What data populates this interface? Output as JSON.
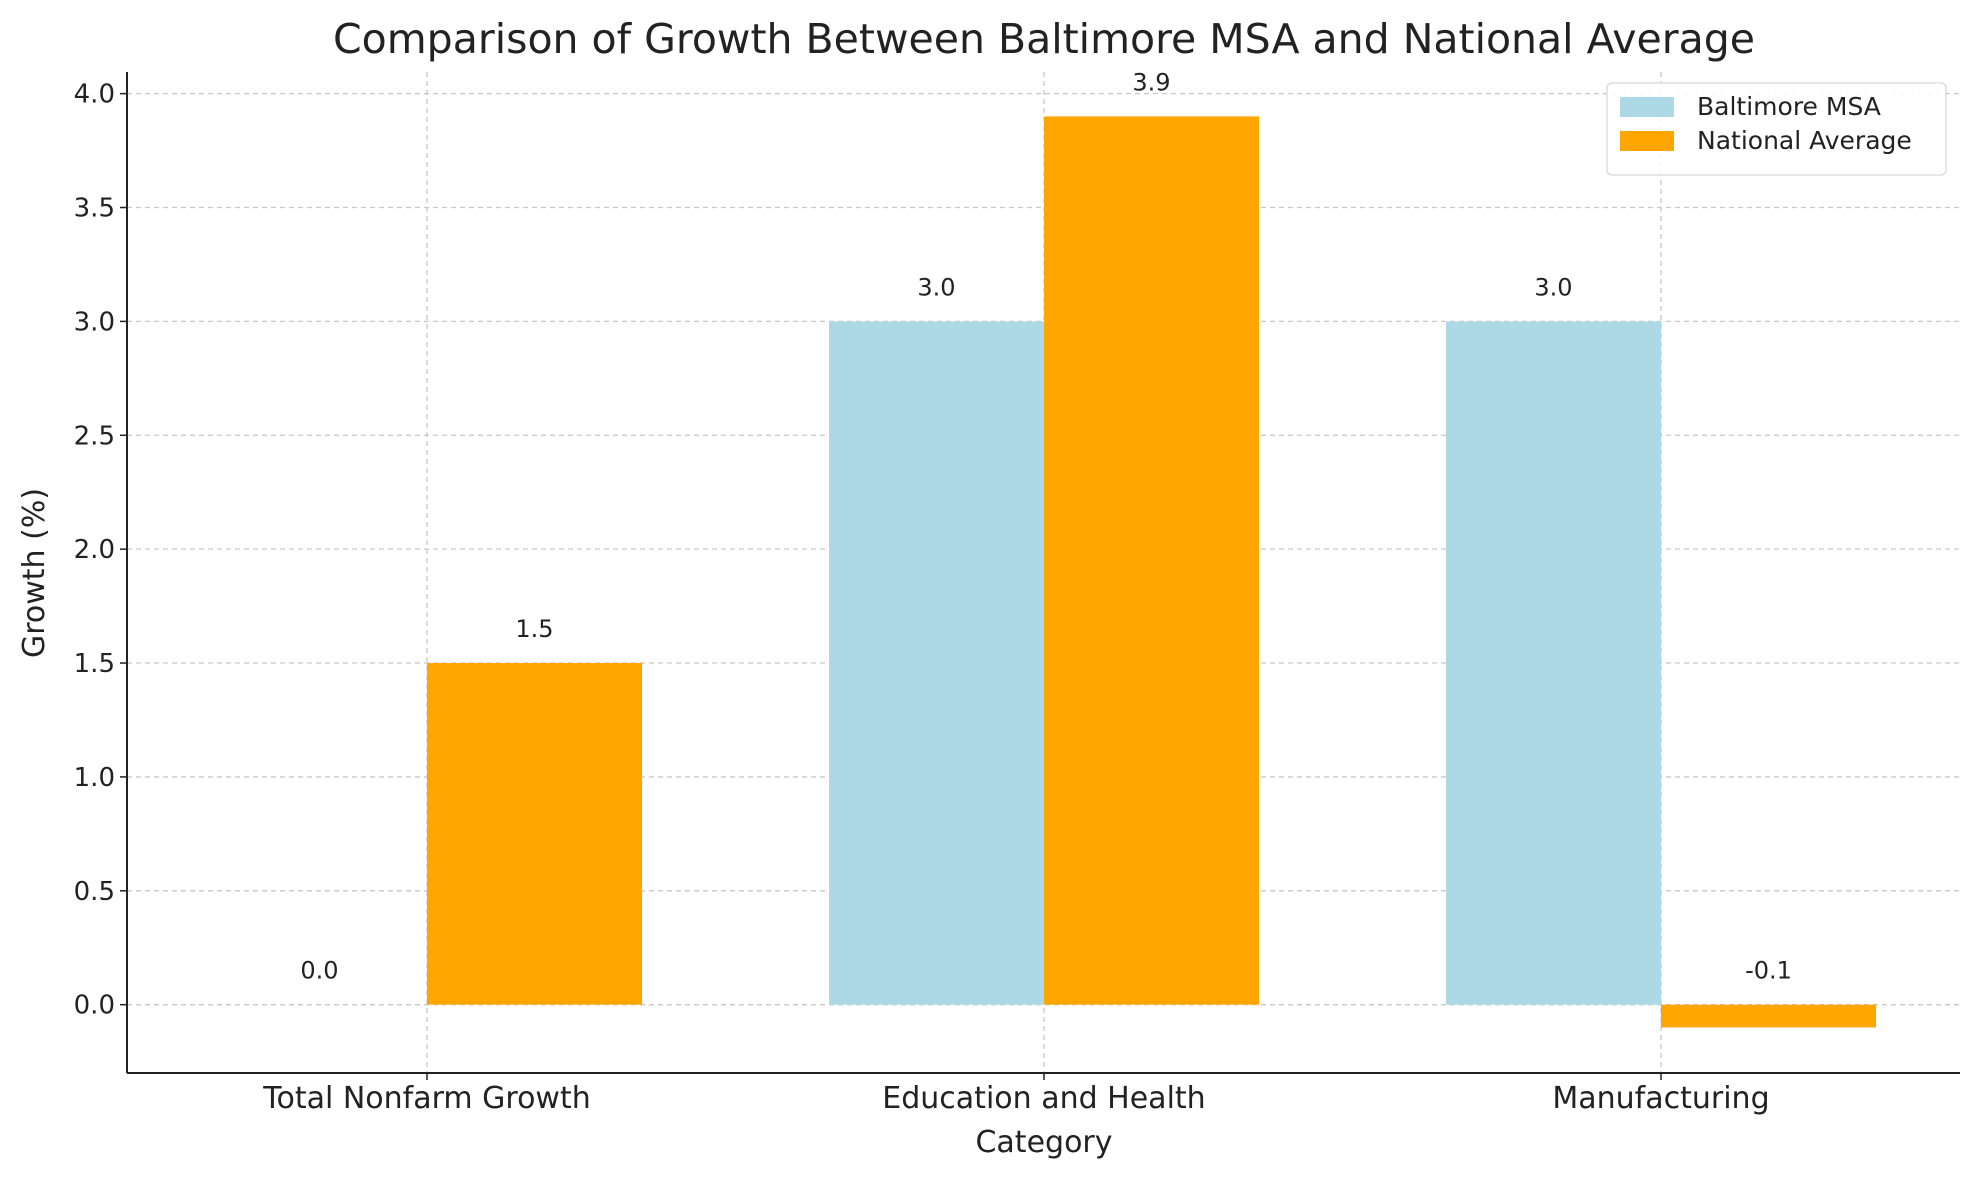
{
  "chart_data": {
    "type": "bar",
    "title": "Comparison of Growth Between Baltimore MSA and National Average",
    "xlabel": "Category",
    "ylabel": "Growth (%)",
    "categories": [
      "Total Nonfarm Growth",
      "Education and Health",
      "Manufacturing"
    ],
    "series": [
      {
        "name": "Baltimore MSA",
        "values": [
          0.0,
          3.0,
          3.0
        ],
        "color": "#ADD8E6",
        "labels": [
          "0.0",
          "3.0",
          "3.0"
        ]
      },
      {
        "name": "National Average",
        "values": [
          1.5,
          3.9,
          -0.1
        ],
        "color": "#FFA500",
        "labels": [
          "1.5",
          "3.9",
          "-0.1"
        ]
      }
    ],
    "ylim": [
      -0.3,
      4.095
    ],
    "yticks": [
      "0.0",
      "0.5",
      "1.0",
      "1.5",
      "2.0",
      "2.5",
      "3.0",
      "3.5",
      "4.0"
    ],
    "grid": true,
    "legend": "top-right"
  }
}
